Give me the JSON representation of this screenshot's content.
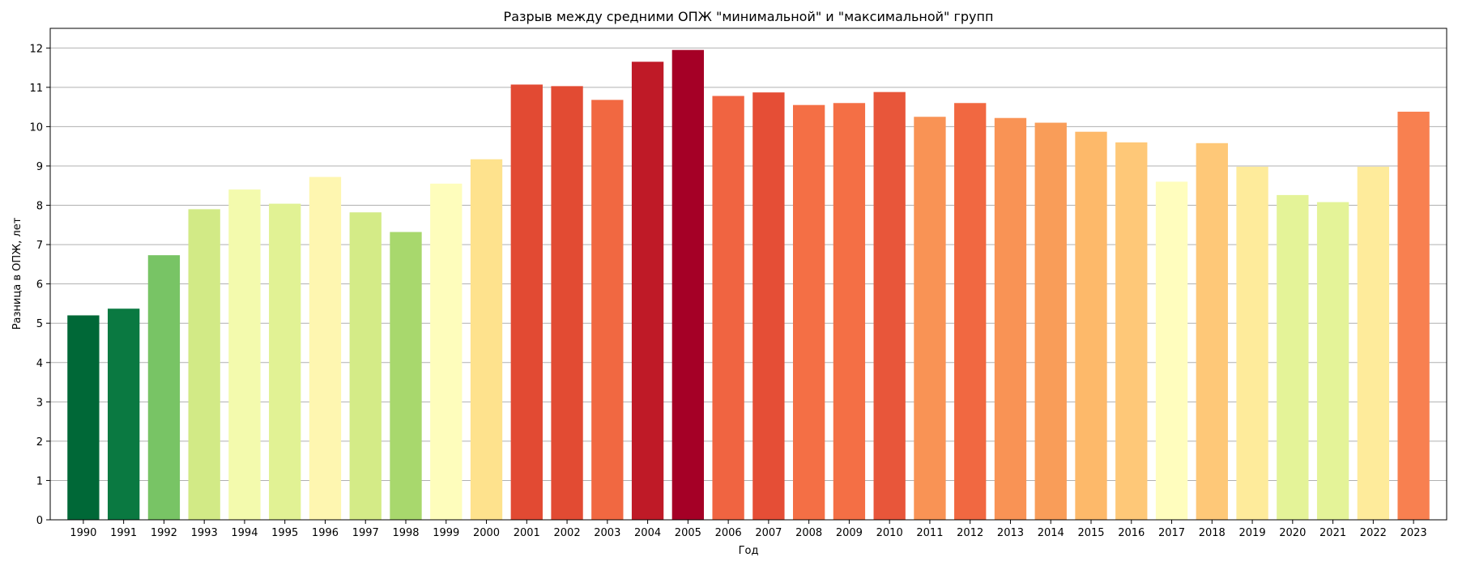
{
  "chart_data": {
    "type": "bar",
    "title": "Разрыв между средними ОПЖ \"минимальной\" и \"максимальной\" групп",
    "xlabel": "Год",
    "ylabel": "Разница в ОПЖ, лет",
    "ylim": [
      0,
      12.5
    ],
    "yticks": [
      0,
      1,
      2,
      3,
      4,
      5,
      6,
      7,
      8,
      9,
      10,
      11,
      12
    ],
    "grid": "horizontal",
    "categories": [
      "1990",
      "1991",
      "1992",
      "1993",
      "1994",
      "1995",
      "1996",
      "1997",
      "1998",
      "1999",
      "2000",
      "2001",
      "2002",
      "2003",
      "2004",
      "2005",
      "2006",
      "2007",
      "2008",
      "2009",
      "2010",
      "2011",
      "2012",
      "2013",
      "2014",
      "2015",
      "2016",
      "2017",
      "2018",
      "2019",
      "2020",
      "2021",
      "2022",
      "2023"
    ],
    "values": [
      5.2,
      5.37,
      6.73,
      7.9,
      8.4,
      8.04,
      8.72,
      7.82,
      7.32,
      8.55,
      9.17,
      11.07,
      11.03,
      10.68,
      11.65,
      11.95,
      10.78,
      10.87,
      10.55,
      10.6,
      10.88,
      10.25,
      10.6,
      10.22,
      10.1,
      9.87,
      9.6,
      8.6,
      9.58,
      8.98,
      8.26,
      8.08,
      8.98,
      10.38
    ],
    "colors": [
      "#006837",
      "#0a7941",
      "#78c465",
      "#d2ea86",
      "#f3faad",
      "#e1f294",
      "#fef6b0",
      "#d4eb87",
      "#a8d86d",
      "#fefdbc",
      "#fee28d",
      "#e24a33",
      "#e24b33",
      "#f16841",
      "#bf1a27",
      "#a50026",
      "#f06441",
      "#e54e36",
      "#f46f45",
      "#f46f45",
      "#e8563a",
      "#f99355",
      "#f16841",
      "#f99355",
      "#f99d59",
      "#fdb96a",
      "#fec878",
      "#fffdbe",
      "#fec878",
      "#feeb9b",
      "#e4f398",
      "#e4f398",
      "#feeb9b",
      "#f88050"
    ]
  }
}
